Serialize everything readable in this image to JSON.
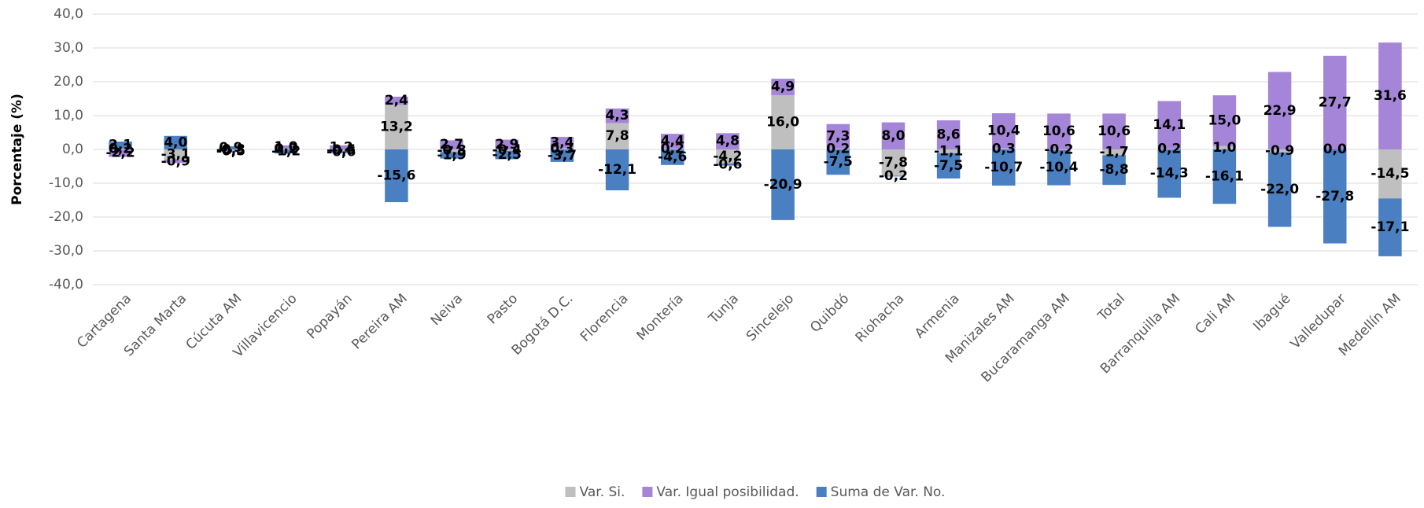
{
  "chart_data": {
    "type": "stacked_bar",
    "y_label": "Porcentaje (%)",
    "categories": [
      "Cartagena",
      "Santa Marta",
      "Cúcuta AM",
      "Villavicencio",
      "Popayán",
      "Pereira AM",
      "Neiva",
      "Pasto",
      "Bogotá D.C.",
      "Florencia",
      "Montería",
      "Tunja",
      "Sincelejo",
      "Quibdó",
      "Riohacha",
      "Armenia",
      "Manizales AM",
      "Bucaramanga AM",
      "Total",
      "Barranquilla AM",
      "Cali AM",
      "Ibagué",
      "Valledupar",
      "Medellín AM"
    ],
    "series": [
      {
        "name": "Var. Si.",
        "color": "#bfbfbf",
        "values": [
          0.2,
          -3.1,
          -0.3,
          0.2,
          -0.5,
          13.2,
          -0.8,
          -0.4,
          0.3,
          7.8,
          0.2,
          -4.2,
          16.0,
          0.2,
          -7.8,
          -1.1,
          0.3,
          -0.2,
          -1.7,
          0.2,
          1.0,
          -0.9,
          0.0,
          -14.5
        ],
        "value_labels": [
          "0,2",
          "-3,1",
          "-0,3",
          "0,2",
          "-0,5",
          "13,2",
          "-0,8",
          "-0,4",
          "0,3",
          "7,8",
          "0,2",
          "-4,2",
          "16,0",
          "0,2",
          "-7,8",
          "-1,1",
          "0,3",
          "-0,2",
          "-1,7",
          "0,2",
          "1,0",
          "-0,9",
          "0,0",
          "-14,5"
        ]
      },
      {
        "name": "Var. Igual posibilidad.",
        "color": "#a585d8",
        "values": [
          -2.2,
          -0.9,
          -0.5,
          1.0,
          1.2,
          2.4,
          2.7,
          2.9,
          3.4,
          4.3,
          4.4,
          4.8,
          4.9,
          7.3,
          8.0,
          8.6,
          10.4,
          10.6,
          10.6,
          14.1,
          15.0,
          22.9,
          27.7,
          31.6
        ],
        "value_labels": [
          "-2,2",
          "-0,9",
          "-0,5",
          "1,0",
          "1,2",
          "2,4",
          "2,7",
          "2,9",
          "3,4",
          "4,3",
          "4,4",
          "4,8",
          "4,9",
          "7,3",
          "8,0",
          "8,6",
          "10,4",
          "10,6",
          "10,6",
          "14,1",
          "15,0",
          "22,9",
          "27,7",
          "31,6"
        ]
      },
      {
        "name": "Suma de Var. No.",
        "color": "#4a7fc1",
        "values": [
          2.1,
          4.0,
          0.9,
          -1.2,
          -0.6,
          -15.6,
          -1.9,
          -2.5,
          -3.7,
          -12.1,
          -4.6,
          -0.6,
          -20.9,
          -7.5,
          -0.2,
          -7.5,
          -10.7,
          -10.4,
          -8.8,
          -14.3,
          -16.1,
          -22.0,
          -27.8,
          -17.1
        ],
        "value_labels": [
          "2,1",
          "4,0",
          "0,9",
          "-1,2",
          "-0,6",
          "-15,6",
          "-1,9",
          "-2,5",
          "-3,7",
          "-12,1",
          "-4,6",
          "-0,6",
          "-20,9",
          "-7,5",
          "-0,2",
          "-7,5",
          "-10,7",
          "-10,4",
          "-8,8",
          "-14,3",
          "-16,1",
          "-22,0",
          "-27,8",
          "-17,1"
        ]
      }
    ],
    "ylim": [
      -40,
      40
    ],
    "yticks": [
      {
        "value": -40,
        "label": "-40,0"
      },
      {
        "value": -30,
        "label": "-30,0"
      },
      {
        "value": -20,
        "label": "-20,0"
      },
      {
        "value": -10,
        "label": "-10,0"
      },
      {
        "value": 0,
        "label": "0,0"
      },
      {
        "value": 10,
        "label": "10,0"
      },
      {
        "value": 20,
        "label": "20,0"
      },
      {
        "value": 30,
        "label": "30,0"
      },
      {
        "value": 40,
        "label": "40,0"
      }
    ],
    "grid": true,
    "legend": "bottom"
  }
}
